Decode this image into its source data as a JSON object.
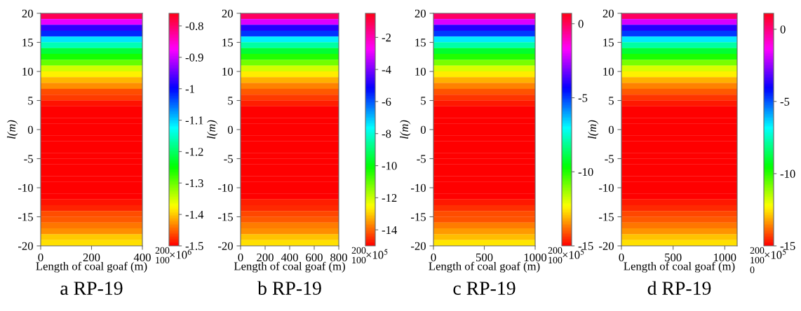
{
  "chart_data": [
    {
      "type": "heatmap",
      "title": "a RP-19",
      "xlabel": "Length of coal goaf (m)",
      "ylabel": "l(m)",
      "clabel": "×10$^{6}$",
      "cells": [
        [
          -0.79
        ],
        [
          -0.885
        ],
        [
          -0.975
        ],
        [
          -1.02
        ],
        [
          -1.11
        ],
        [
          -1.16
        ],
        [
          -1.22
        ],
        [
          -1.26
        ],
        [
          -1.3
        ],
        [
          -1.35
        ],
        [
          -1.38
        ],
        [
          -1.41
        ],
        [
          -1.43
        ],
        [
          -1.46
        ],
        [
          -1.47
        ],
        [
          -1.49
        ],
        [
          -1.5
        ],
        [
          -1.5
        ],
        [
          -1.5
        ],
        [
          -1.5
        ],
        [
          -1.5
        ],
        [
          -1.5
        ],
        [
          -1.5
        ],
        [
          -1.5
        ],
        [
          -1.5
        ],
        [
          -1.5
        ],
        [
          -1.5
        ],
        [
          -1.5
        ],
        [
          -1.5
        ],
        [
          -1.5
        ],
        [
          -1.5
        ],
        [
          -1.5
        ],
        [
          -1.49
        ],
        [
          -1.48
        ],
        [
          -1.46
        ],
        [
          -1.455
        ],
        [
          -1.44
        ],
        [
          -1.43
        ],
        [
          -1.4
        ],
        [
          -1.39
        ]
      ],
      "xlim": [
        0,
        400
      ],
      "xticks": [
        0,
        200,
        400
      ],
      "ylim": [
        -20,
        20
      ],
      "yticks": [
        -20,
        -15,
        -10,
        -5,
        0,
        5,
        10,
        15,
        20
      ],
      "clim": [
        -1.5,
        -0.76
      ],
      "cticks": [
        -1.5,
        -1.4,
        -1.3,
        -1.2,
        -1.1,
        -1,
        -0.9,
        -0.8
      ],
      "annotations": [
        "200",
        "100"
      ]
    },
    {
      "type": "heatmap",
      "title": "b RP-19",
      "xlabel": "Length of coal goaf (m)",
      "ylabel": "l(m)",
      "clabel": "×10$^{5}$",
      "cells": [
        [
          -1.2
        ],
        [
          -3.1
        ],
        [
          -4.85
        ],
        [
          -5.7
        ],
        [
          -7.5
        ],
        [
          -8.5
        ],
        [
          -9.6
        ],
        [
          -10.4
        ],
        [
          -11.2
        ],
        [
          -12.1
        ],
        [
          -12.7
        ],
        [
          -13.3
        ],
        [
          -13.7
        ],
        [
          -14.1
        ],
        [
          -14.4
        ],
        [
          -14.7
        ],
        [
          -15
        ],
        [
          -15
        ],
        [
          -15
        ],
        [
          -15
        ],
        [
          -15
        ],
        [
          -15
        ],
        [
          -15
        ],
        [
          -15
        ],
        [
          -15
        ],
        [
          -15
        ],
        [
          -15
        ],
        [
          -15
        ],
        [
          -15
        ],
        [
          -15
        ],
        [
          -15
        ],
        [
          -15
        ],
        [
          -14.7
        ],
        [
          -14.6
        ],
        [
          -14.3
        ],
        [
          -14.1
        ],
        [
          -13.8
        ],
        [
          -13.6
        ],
        [
          -13.1
        ],
        [
          -12.8
        ]
      ],
      "xlim": [
        0,
        800
      ],
      "xticks": [
        0,
        200,
        400,
        600,
        800
      ],
      "ylim": [
        -20,
        20
      ],
      "yticks": [
        -20,
        -15,
        -10,
        -5,
        0,
        5,
        10,
        15,
        20
      ],
      "clim": [
        -15,
        -0.5
      ],
      "cticks": [
        -14,
        -12,
        -10,
        -8,
        -6,
        -4,
        -2
      ],
      "annotations": [
        "200",
        "100"
      ]
    },
    {
      "type": "heatmap",
      "title": "c RP-19",
      "xlabel": "Length of coal goaf (m)",
      "ylabel": "l(m)",
      "clabel": "×10$^{5}$",
      "cells": [
        [
          -0.1
        ],
        [
          -2.1
        ],
        [
          -4.0
        ],
        [
          -5.0
        ],
        [
          -6.8
        ],
        [
          -7.9
        ],
        [
          -9.2
        ],
        [
          -10.0
        ],
        [
          -10.9
        ],
        [
          -11.9
        ],
        [
          -12.5
        ],
        [
          -13.1
        ],
        [
          -13.6
        ],
        [
          -14.1
        ],
        [
          -14.4
        ],
        [
          -14.7
        ],
        [
          -15
        ],
        [
          -15
        ],
        [
          -15
        ],
        [
          -15
        ],
        [
          -15
        ],
        [
          -15
        ],
        [
          -15
        ],
        [
          -15
        ],
        [
          -15
        ],
        [
          -15
        ],
        [
          -15
        ],
        [
          -15
        ],
        [
          -15
        ],
        [
          -15
        ],
        [
          -15
        ],
        [
          -15
        ],
        [
          -14.7
        ],
        [
          -14.5
        ],
        [
          -14.2
        ],
        [
          -14.1
        ],
        [
          -13.7
        ],
        [
          -13.4
        ],
        [
          -13.0
        ],
        [
          -12.6
        ]
      ],
      "xlim": [
        0,
        1000
      ],
      "xticks": [
        0,
        500,
        1000
      ],
      "ylim": [
        -20,
        20
      ],
      "yticks": [
        -20,
        -15,
        -10,
        -5,
        0,
        5,
        10,
        15,
        20
      ],
      "clim": [
        -15,
        0.7
      ],
      "cticks": [
        -15,
        -10,
        -5,
        0
      ],
      "annotations": [
        "200",
        "100"
      ]
    },
    {
      "type": "heatmap",
      "title": "d RP-19",
      "xlabel": "Length of coal goaf (m)",
      "ylabel": "l(m)",
      "clabel": "×10$^{5}$",
      "cells": [
        [
          0.3
        ],
        [
          -1.8
        ],
        [
          -3.7
        ],
        [
          -4.7
        ],
        [
          -6.6
        ],
        [
          -7.8
        ],
        [
          -9.0
        ],
        [
          -9.8
        ],
        [
          -10.8
        ],
        [
          -11.8
        ],
        [
          -12.4
        ],
        [
          -13.1
        ],
        [
          -13.6
        ],
        [
          -14.0
        ],
        [
          -14.4
        ],
        [
          -14.7
        ],
        [
          -15
        ],
        [
          -15
        ],
        [
          -15
        ],
        [
          -15
        ],
        [
          -15
        ],
        [
          -15
        ],
        [
          -15
        ],
        [
          -15
        ],
        [
          -15
        ],
        [
          -15
        ],
        [
          -15
        ],
        [
          -15
        ],
        [
          -15
        ],
        [
          -15
        ],
        [
          -15
        ],
        [
          -15
        ],
        [
          -14.7
        ],
        [
          -14.5
        ],
        [
          -14.2
        ],
        [
          -14.0
        ],
        [
          -13.7
        ],
        [
          -13.4
        ],
        [
          -12.9
        ],
        [
          -12.6
        ]
      ],
      "xlim": [
        0,
        1120
      ],
      "xticks": [
        0,
        500,
        1000
      ],
      "ylim": [
        -20,
        20
      ],
      "yticks": [
        -20,
        -15,
        -10,
        -5,
        0,
        5,
        10,
        15,
        20
      ],
      "clim": [
        -15,
        1.1
      ],
      "cticks": [
        -15,
        -10,
        -5,
        0
      ],
      "annotations": [
        "200",
        "100",
        "0"
      ]
    }
  ]
}
